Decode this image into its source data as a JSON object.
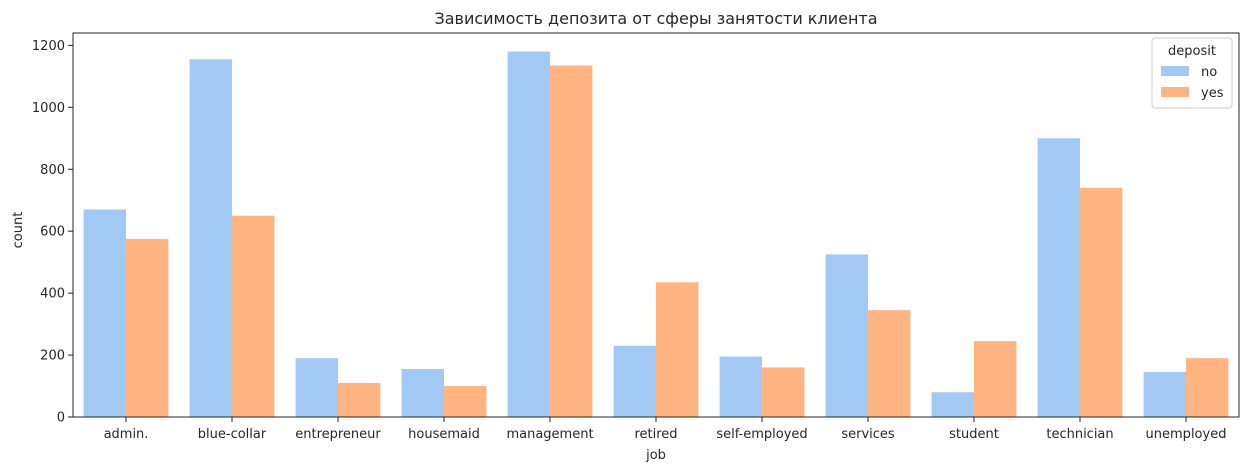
{
  "chart_data": {
    "type": "bar",
    "title": "Зависимость депозита от сферы занятости клиента",
    "xlabel": "job",
    "ylabel": "count",
    "categories": [
      "admin.",
      "blue-collar",
      "entrepreneur",
      "housemaid",
      "management",
      "retired",
      "self-employed",
      "services",
      "student",
      "technician",
      "unemployed"
    ],
    "series": [
      {
        "name": "no",
        "color": "#a1c9f4",
        "values": [
          670,
          1155,
          190,
          155,
          1180,
          230,
          195,
          525,
          80,
          900,
          145
        ]
      },
      {
        "name": "yes",
        "color": "#ffb482",
        "values": [
          575,
          650,
          110,
          100,
          1135,
          435,
          160,
          345,
          245,
          740,
          190
        ]
      }
    ],
    "ylim": [
      0,
      1240
    ],
    "yticks": [
      0,
      200,
      400,
      600,
      800,
      1000,
      1200
    ],
    "grid": false,
    "legend": {
      "title": "deposit",
      "placement": "top-right"
    }
  }
}
